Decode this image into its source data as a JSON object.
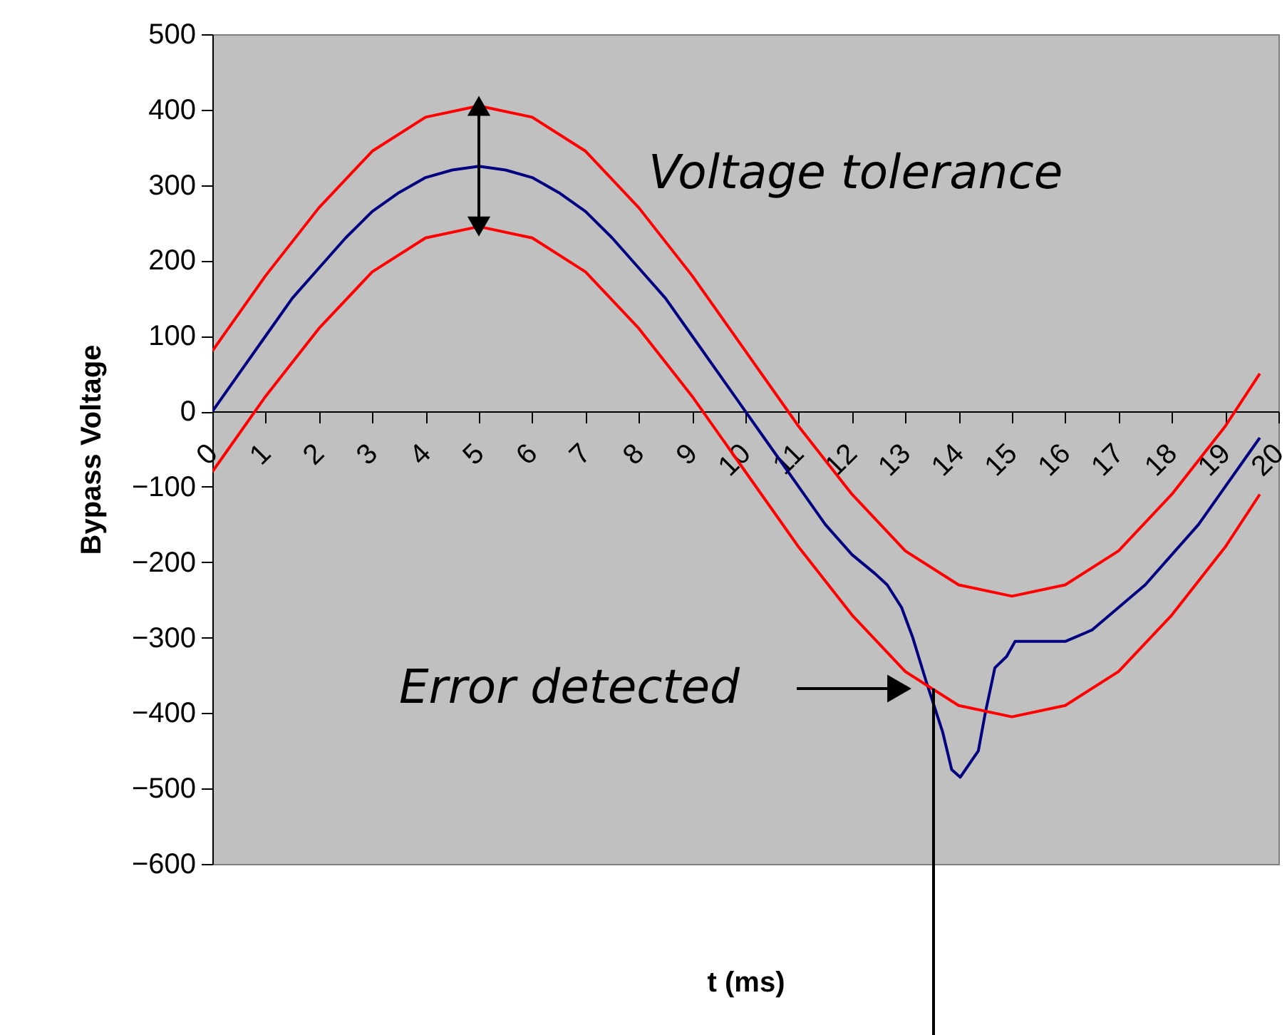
{
  "chart_data": {
    "type": "line",
    "xlabel": "t (ms)",
    "ylabel": "Bypass Voltage",
    "xlim": [
      0,
      20
    ],
    "xticks": [
      0,
      1,
      2,
      3,
      4,
      5,
      6,
      7,
      8,
      9,
      10,
      11,
      12,
      13,
      14,
      15,
      16,
      17,
      18,
      19,
      20
    ],
    "ylim": [
      -600,
      500
    ],
    "yticks": [
      -600,
      -500,
      -400,
      -300,
      -200,
      -100,
      0,
      100,
      200,
      300,
      400,
      500
    ],
    "grid": false,
    "marker": "none",
    "line_style": "solid",
    "annotations": [
      "Voltage tolerance",
      "Error detected"
    ],
    "series": [
      {
        "color": "#ff0000",
        "x": [
          0,
          1,
          2,
          3,
          4,
          5,
          6,
          7,
          8,
          9,
          10,
          11,
          12,
          13,
          14,
          15,
          16,
          17,
          18,
          19,
          19.65
        ],
        "values": [
          80,
          180,
          270,
          345,
          390,
          405,
          390,
          345,
          270,
          180,
          80,
          -20,
          -110,
          -185,
          -230,
          -245,
          -230,
          -185,
          -110,
          -20,
          50
        ]
      },
      {
        "color": "#000080",
        "x": [
          0,
          0.5,
          1,
          1.5,
          2,
          2.5,
          3,
          3.5,
          4,
          4.5,
          5,
          5.5,
          6,
          6.5,
          7,
          7.5,
          8,
          8.5,
          9,
          9.5,
          10,
          10.5,
          11,
          11.5,
          12,
          12.43,
          12.66,
          12.93,
          13.14,
          13.4,
          13.7,
          13.87,
          14.03,
          14.37,
          14.5,
          14.68,
          14.9,
          15.06,
          16,
          16.5,
          17,
          17.5,
          18,
          18.5,
          19,
          19.5,
          19.65
        ],
        "values": [
          0,
          50,
          100,
          150,
          190,
          230,
          265,
          290,
          310,
          320,
          325,
          320,
          310,
          290,
          265,
          230,
          190,
          150,
          100,
          50,
          0,
          -50,
          -100,
          -150,
          -190,
          -215,
          -230,
          -260,
          -300,
          -360,
          -425,
          -475,
          -485,
          -450,
          -400,
          -340,
          -325,
          -305,
          -305,
          -290,
          -260,
          -230,
          -190,
          -150,
          -100,
          -50,
          -35
        ]
      },
      {
        "color": "#ff0000",
        "x": [
          0,
          1,
          2,
          3,
          4,
          5,
          6,
          7,
          8,
          9,
          10,
          11,
          12,
          13,
          14,
          15,
          16,
          17,
          18,
          19,
          19.65
        ],
        "values": [
          -80,
          20,
          110,
          185,
          230,
          245,
          230,
          185,
          110,
          20,
          -80,
          -180,
          -270,
          -345,
          -390,
          -405,
          -390,
          -345,
          -270,
          -180,
          -110
        ]
      }
    ]
  }
}
